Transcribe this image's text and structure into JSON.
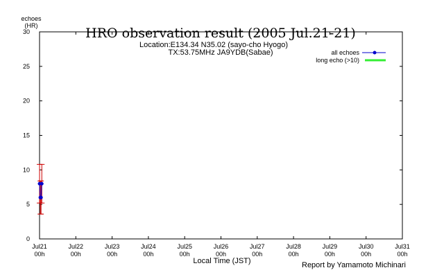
{
  "chart_data": {
    "type": "line",
    "title": "HRO observation result (2005 Jul.21-21)",
    "subtitle_lines": [
      "Location:E134.34 N35.02 (sayo-cho Hyogo)",
      "TX:53.75MHz JA9YDB(Sabae)"
    ],
    "ylabel_top": "echoes",
    "ylabel_unit": "(HR)",
    "xlabel": "Local Time (JST)",
    "credit": "Report by Yamamoto Michinari",
    "ylim": [
      0,
      30
    ],
    "yticks": [
      0,
      5,
      10,
      15,
      20,
      25,
      30
    ],
    "xlim_hours": [
      0,
      240
    ],
    "xticks": [
      {
        "label": "Jul21",
        "sub": "00h"
      },
      {
        "label": "Jul22",
        "sub": "00h"
      },
      {
        "label": "Jul23",
        "sub": "00h"
      },
      {
        "label": "Jul24",
        "sub": "00h"
      },
      {
        "label": "Jul25",
        "sub": "00h"
      },
      {
        "label": "Jul26",
        "sub": "00h"
      },
      {
        "label": "Jul27",
        "sub": "00h"
      },
      {
        "label": "Jul28",
        "sub": "00h"
      },
      {
        "label": "Jul29",
        "sub": "00h"
      },
      {
        "label": "Jul30",
        "sub": "00h"
      },
      {
        "label": "Jul31",
        "sub": "00h"
      }
    ],
    "legend": [
      {
        "label": "all echoes",
        "color": "#0000cc",
        "style": "line-dot"
      },
      {
        "label": "long echo (>10)",
        "color": "#33ee33",
        "style": "thick-line"
      }
    ],
    "legend_position": "top-right",
    "series": [
      {
        "name": "all echoes",
        "color": "#0000cc",
        "points": [
          {
            "hour": 0,
            "value": 8
          },
          {
            "hour": 0.5,
            "value": 6
          },
          {
            "hour": 1,
            "value": 6
          },
          {
            "hour": 1.5,
            "value": 8
          }
        ]
      }
    ],
    "error_bars": {
      "color": "#cc0000",
      "bars": [
        {
          "hour": 0,
          "low": 5.2,
          "high": 10.8
        },
        {
          "hour": 0.5,
          "low": 3.6,
          "high": 8.4
        },
        {
          "hour": 1,
          "low": 3.6,
          "high": 8.4
        },
        {
          "hour": 1.5,
          "low": 5.2,
          "high": 10.8
        }
      ]
    }
  }
}
